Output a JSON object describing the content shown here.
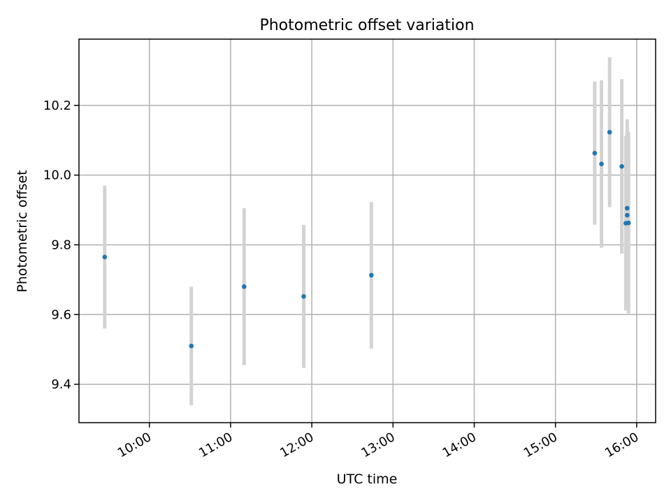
{
  "chart_data": {
    "type": "scatter",
    "title": "Photometric offset variation",
    "xlabel": "UTC time",
    "ylabel": "Photometric offset",
    "x_tick_labels": [
      "10:00",
      "11:00",
      "12:00",
      "13:00",
      "14:00",
      "15:00",
      "16:00"
    ],
    "y_tick_labels": [
      "9.4",
      "9.6",
      "9.8",
      "10.0",
      "10.2"
    ],
    "y_ticks": [
      9.4,
      9.6,
      9.8,
      10.0,
      10.2
    ],
    "xlim": [
      "09:08",
      "16:14"
    ],
    "ylim": [
      9.29,
      10.39
    ],
    "grid": true,
    "series": [
      {
        "marker_color": "#1f77b4",
        "errorbar_color": "#d3d3d3",
        "points": [
          {
            "x": "09:27",
            "y": 9.765,
            "err": 0.205
          },
          {
            "x": "10:31",
            "y": 9.51,
            "err": 0.17
          },
          {
            "x": "11:10",
            "y": 9.68,
            "err": 0.225
          },
          {
            "x": "11:54",
            "y": 9.652,
            "err": 0.205
          },
          {
            "x": "12:44",
            "y": 9.713,
            "err": 0.21
          },
          {
            "x": "15:29",
            "y": 10.063,
            "err": 0.205
          },
          {
            "x": "15:34",
            "y": 10.032,
            "err": 0.24
          },
          {
            "x": "15:40",
            "y": 10.123,
            "err": 0.215
          },
          {
            "x": "15:49",
            "y": 10.025,
            "err": 0.25
          },
          {
            "x": "15:52",
            "y": 9.862,
            "err": 0.25
          },
          {
            "x": "15:53",
            "y": 9.905,
            "err": 0.255
          },
          {
            "x": "15:53",
            "y": 9.885,
            "err": 0.24
          },
          {
            "x": "15:54",
            "y": 9.863,
            "err": 0.26
          }
        ]
      }
    ]
  }
}
